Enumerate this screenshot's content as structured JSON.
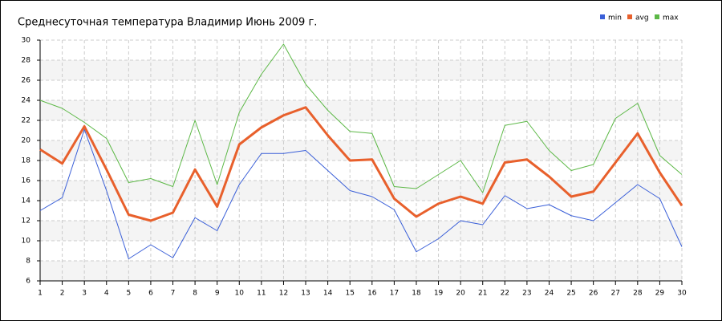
{
  "chart_data": {
    "type": "line",
    "title": "Среднесуточная температура Владимир  Июнь 2009 г.",
    "x": [
      1,
      2,
      3,
      4,
      5,
      6,
      7,
      8,
      9,
      10,
      11,
      12,
      13,
      14,
      15,
      16,
      17,
      18,
      19,
      20,
      21,
      22,
      23,
      24,
      25,
      26,
      27,
      28,
      29,
      30
    ],
    "series": [
      {
        "name": "min",
        "color": "#3a5fd8",
        "values": [
          13,
          14.3,
          21.1,
          15,
          8.2,
          9.6,
          8.3,
          12.3,
          11,
          15.6,
          18.7,
          18.7,
          19,
          17,
          15,
          14.4,
          13.1,
          8.9,
          10.2,
          12,
          11.6,
          14.5,
          13.2,
          13.6,
          12.5,
          12,
          13.8,
          15.6,
          14.2,
          9.4
        ]
      },
      {
        "name": "avg",
        "color": "#e8602c",
        "values": [
          19.1,
          17.7,
          21.4,
          17.1,
          12.6,
          12.0,
          12.8,
          17.1,
          13.4,
          19.6,
          21.3,
          22.5,
          23.3,
          20.5,
          18.0,
          18.1,
          14.2,
          12.4,
          13.7,
          14.4,
          13.7,
          17.8,
          18.1,
          16.4,
          14.4,
          14.9,
          17.8,
          20.7,
          16.8,
          13.5
        ]
      },
      {
        "name": "max",
        "color": "#5cb846",
        "values": [
          24,
          23.2,
          21.8,
          20.2,
          15.8,
          16.2,
          15.4,
          22,
          15.6,
          22.8,
          26.6,
          29.6,
          25.6,
          23,
          20.9,
          20.7,
          15.4,
          15.2,
          16.6,
          18,
          14.8,
          21.5,
          21.9,
          19,
          17,
          17.6,
          22.2,
          23.7,
          18.5,
          16.6
        ]
      }
    ],
    "xlim": [
      1,
      30
    ],
    "xticks": [
      1,
      2,
      3,
      4,
      5,
      6,
      7,
      8,
      9,
      10,
      11,
      12,
      13,
      14,
      15,
      16,
      17,
      18,
      19,
      20,
      21,
      22,
      23,
      24,
      25,
      26,
      27,
      28,
      29,
      30
    ],
    "ylim": [
      6,
      30
    ],
    "yticks": [
      6,
      8,
      10,
      12,
      14,
      16,
      18,
      20,
      22,
      24,
      26,
      28,
      30
    ],
    "grid": true,
    "legend": "top-right"
  }
}
